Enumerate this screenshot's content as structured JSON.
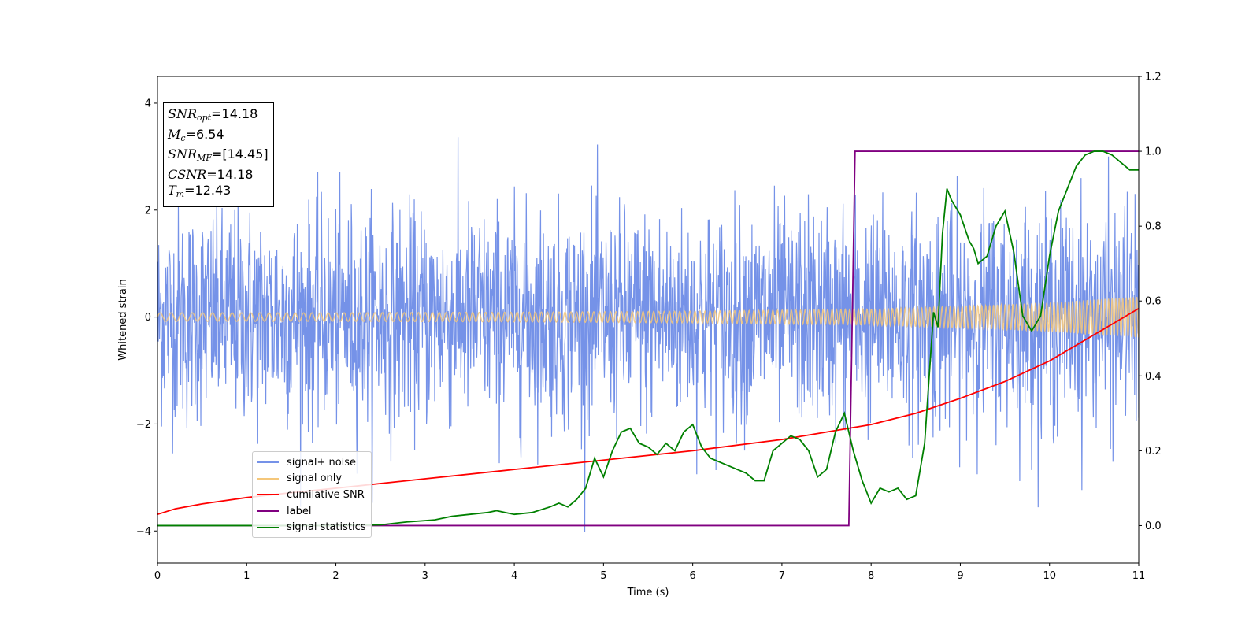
{
  "chart_data": {
    "type": "line",
    "xlabel": "Time (s)",
    "ylabel": "Whitened strain",
    "xlim": [
      0,
      11
    ],
    "ylim": [
      -4.6,
      4.5
    ],
    "y2lim": [
      -0.1,
      1.2
    ],
    "xticks": [
      "0",
      "1",
      "2",
      "3",
      "4",
      "5",
      "6",
      "7",
      "8",
      "9",
      "10",
      "11"
    ],
    "yticks": [
      "−4",
      "−2",
      "0",
      "2",
      "4"
    ],
    "y2ticks": [
      "0.0",
      "0.2",
      "0.4",
      "0.6",
      "0.8",
      "1.0",
      "1.2"
    ],
    "grid": false,
    "legend_position": "lower-left",
    "annotation": {
      "snr_opt": "=14.18",
      "mc": "=6.54",
      "snr_mf": "=[14.45]",
      "csnr": "=14.18",
      "tm": "=12.43"
    },
    "series": [
      {
        "name": "signal+ noise",
        "color": "#7592e8",
        "axis": "left",
        "typical_amplitude": 1.0,
        "max_abs": 4.05
      },
      {
        "name": "signal only",
        "color": "#f5c77a",
        "axis": "left",
        "amplitude_envelope": {
          "x": [
            0,
            2,
            4,
            6,
            8,
            9,
            10,
            11
          ],
          "y": [
            0.08,
            0.08,
            0.09,
            0.11,
            0.15,
            0.2,
            0.27,
            0.38
          ]
        }
      },
      {
        "name": "cumilative SNR",
        "color": "#ff0000",
        "axis": "right",
        "x": [
          0,
          0.2,
          0.5,
          1,
          1.5,
          2,
          3,
          4,
          5,
          6,
          7,
          7.5,
          8,
          8.5,
          9,
          9.5,
          10,
          10.5,
          11
        ],
        "y": [
          0.03,
          0.045,
          0.058,
          0.075,
          0.088,
          0.1,
          0.125,
          0.15,
          0.175,
          0.2,
          0.23,
          0.25,
          0.27,
          0.3,
          0.34,
          0.385,
          0.44,
          0.51,
          0.58
        ]
      },
      {
        "name": "label",
        "color": "#800080",
        "axis": "right",
        "x": [
          0,
          7.75,
          7.82,
          11
        ],
        "y": [
          0,
          0,
          1,
          1
        ]
      },
      {
        "name": "signal statistics",
        "color": "#008000",
        "axis": "right",
        "x": [
          0,
          1,
          2,
          2.5,
          2.8,
          3.1,
          3.3,
          3.5,
          3.7,
          3.8,
          3.9,
          4.0,
          4.2,
          4.4,
          4.5,
          4.6,
          4.7,
          4.8,
          4.9,
          5.0,
          5.1,
          5.2,
          5.3,
          5.4,
          5.5,
          5.6,
          5.7,
          5.8,
          5.9,
          6.0,
          6.1,
          6.2,
          6.3,
          6.4,
          6.5,
          6.6,
          6.7,
          6.8,
          6.9,
          7.0,
          7.1,
          7.2,
          7.3,
          7.4,
          7.5,
          7.6,
          7.7,
          7.8,
          7.9,
          8.0,
          8.1,
          8.2,
          8.3,
          8.4,
          8.5,
          8.6,
          8.7,
          8.75,
          8.8,
          8.85,
          8.9,
          9.0,
          9.1,
          9.15,
          9.2,
          9.3,
          9.4,
          9.5,
          9.6,
          9.7,
          9.8,
          9.9,
          10.0,
          10.1,
          10.2,
          10.3,
          10.4,
          10.5,
          10.6,
          10.7,
          10.8,
          10.9,
          11.0
        ],
        "y": [
          0.0,
          0.0,
          0.0,
          0.002,
          0.01,
          0.015,
          0.025,
          0.03,
          0.035,
          0.04,
          0.035,
          0.03,
          0.035,
          0.05,
          0.06,
          0.05,
          0.07,
          0.1,
          0.18,
          0.13,
          0.2,
          0.25,
          0.26,
          0.22,
          0.21,
          0.19,
          0.22,
          0.2,
          0.25,
          0.27,
          0.21,
          0.18,
          0.17,
          0.16,
          0.15,
          0.14,
          0.12,
          0.12,
          0.2,
          0.22,
          0.24,
          0.23,
          0.2,
          0.13,
          0.15,
          0.25,
          0.3,
          0.2,
          0.12,
          0.06,
          0.1,
          0.09,
          0.1,
          0.07,
          0.08,
          0.22,
          0.57,
          0.53,
          0.78,
          0.9,
          0.87,
          0.83,
          0.76,
          0.74,
          0.7,
          0.72,
          0.8,
          0.84,
          0.73,
          0.56,
          0.52,
          0.56,
          0.72,
          0.84,
          0.9,
          0.96,
          0.99,
          1.0,
          1.0,
          0.99,
          0.97,
          0.95,
          0.95
        ]
      }
    ]
  }
}
